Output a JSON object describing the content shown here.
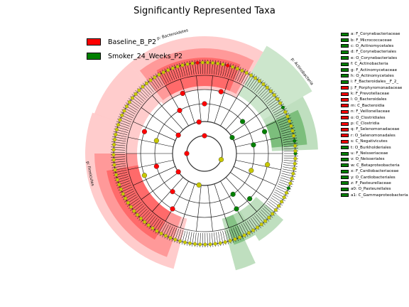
{
  "title": "Significantly Represented Taxa",
  "colors": {
    "enriched_baseline": "#ff0000",
    "enriched_smoker": "#008000",
    "neutral": "#c8c800"
  },
  "legend": [
    {
      "label": "Baseline_B_P2",
      "color": "#ff0000"
    },
    {
      "label": "Smoker_24_Weeks_P2",
      "color": "#008000"
    }
  ],
  "clade_labels": {
    "bacteroidetes": "p: Bacteroidetes",
    "actinobacteria": "p: Actinobacteria",
    "firmicutes": "p: Firmicutes"
  },
  "taxa": [
    {
      "key": "a",
      "label": "a: F_Corynebacteriaceae",
      "color": "#008000"
    },
    {
      "key": "b",
      "label": "b: F_Micrococcaceae",
      "color": "#008000"
    },
    {
      "key": "c",
      "label": "c: O_Actinomycetales",
      "color": "#008000"
    },
    {
      "key": "d",
      "label": "d: F_Corynebacteriales",
      "color": "#008000"
    },
    {
      "key": "e",
      "label": "e: O_Corynebacteriales",
      "color": "#008000"
    },
    {
      "key": "f",
      "label": "f: C_Actinobacteria",
      "color": "#008000"
    },
    {
      "key": "g",
      "label": "g: F_Actinomycetaceae",
      "color": "#008000"
    },
    {
      "key": "h",
      "label": "h: O_Actinomycetales",
      "color": "#008000"
    },
    {
      "key": "i",
      "label": "i: F_Bacteroidales__F_2_",
      "color": "#008000"
    },
    {
      "key": "j",
      "label": "j: F_Porphyromonadaceae",
      "color": "#ff0000"
    },
    {
      "key": "k",
      "label": "k: F_Prevotellaceae",
      "color": "#ff0000"
    },
    {
      "key": "l",
      "label": "l: O_Bacteroidales",
      "color": "#ff0000"
    },
    {
      "key": "m",
      "label": "m: C_Bacteroidia",
      "color": "#ff0000"
    },
    {
      "key": "n",
      "label": "n: F_Veillonellaceae",
      "color": "#ff0000"
    },
    {
      "key": "o",
      "label": "o: O_Clostridiales",
      "color": "#ff0000"
    },
    {
      "key": "p",
      "label": "p: C_Clostridia",
      "color": "#ff0000"
    },
    {
      "key": "q",
      "label": "q: F_Selenomonadaceae",
      "color": "#ff0000"
    },
    {
      "key": "r",
      "label": "r: O_Selenomonadales",
      "color": "#ff0000"
    },
    {
      "key": "s",
      "label": "s: C_Negativicutes",
      "color": "#ff0000"
    },
    {
      "key": "t",
      "label": "t: O_Burkholderiales",
      "color": "#008000"
    },
    {
      "key": "u",
      "label": "u: F_Neisseriaceae",
      "color": "#008000"
    },
    {
      "key": "v",
      "label": "v: O_Neisseriales",
      "color": "#008000"
    },
    {
      "key": "w",
      "label": "w: C_Betaproteobacteria",
      "color": "#008000"
    },
    {
      "key": "x",
      "label": "x: F_Cardiobacteriaceae",
      "color": "#008000"
    },
    {
      "key": "y",
      "label": "y: O_Cardiobacteriales",
      "color": "#008000"
    },
    {
      "key": "z",
      "label": "z: F_Pasteurellaceae",
      "color": "#008000"
    },
    {
      "key": "a0",
      "label": "a0: O_Pasteurellales",
      "color": "#008000"
    },
    {
      "key": "a1",
      "label": "a1: C_Gammaproteobacteria",
      "color": "#008000"
    }
  ]
}
